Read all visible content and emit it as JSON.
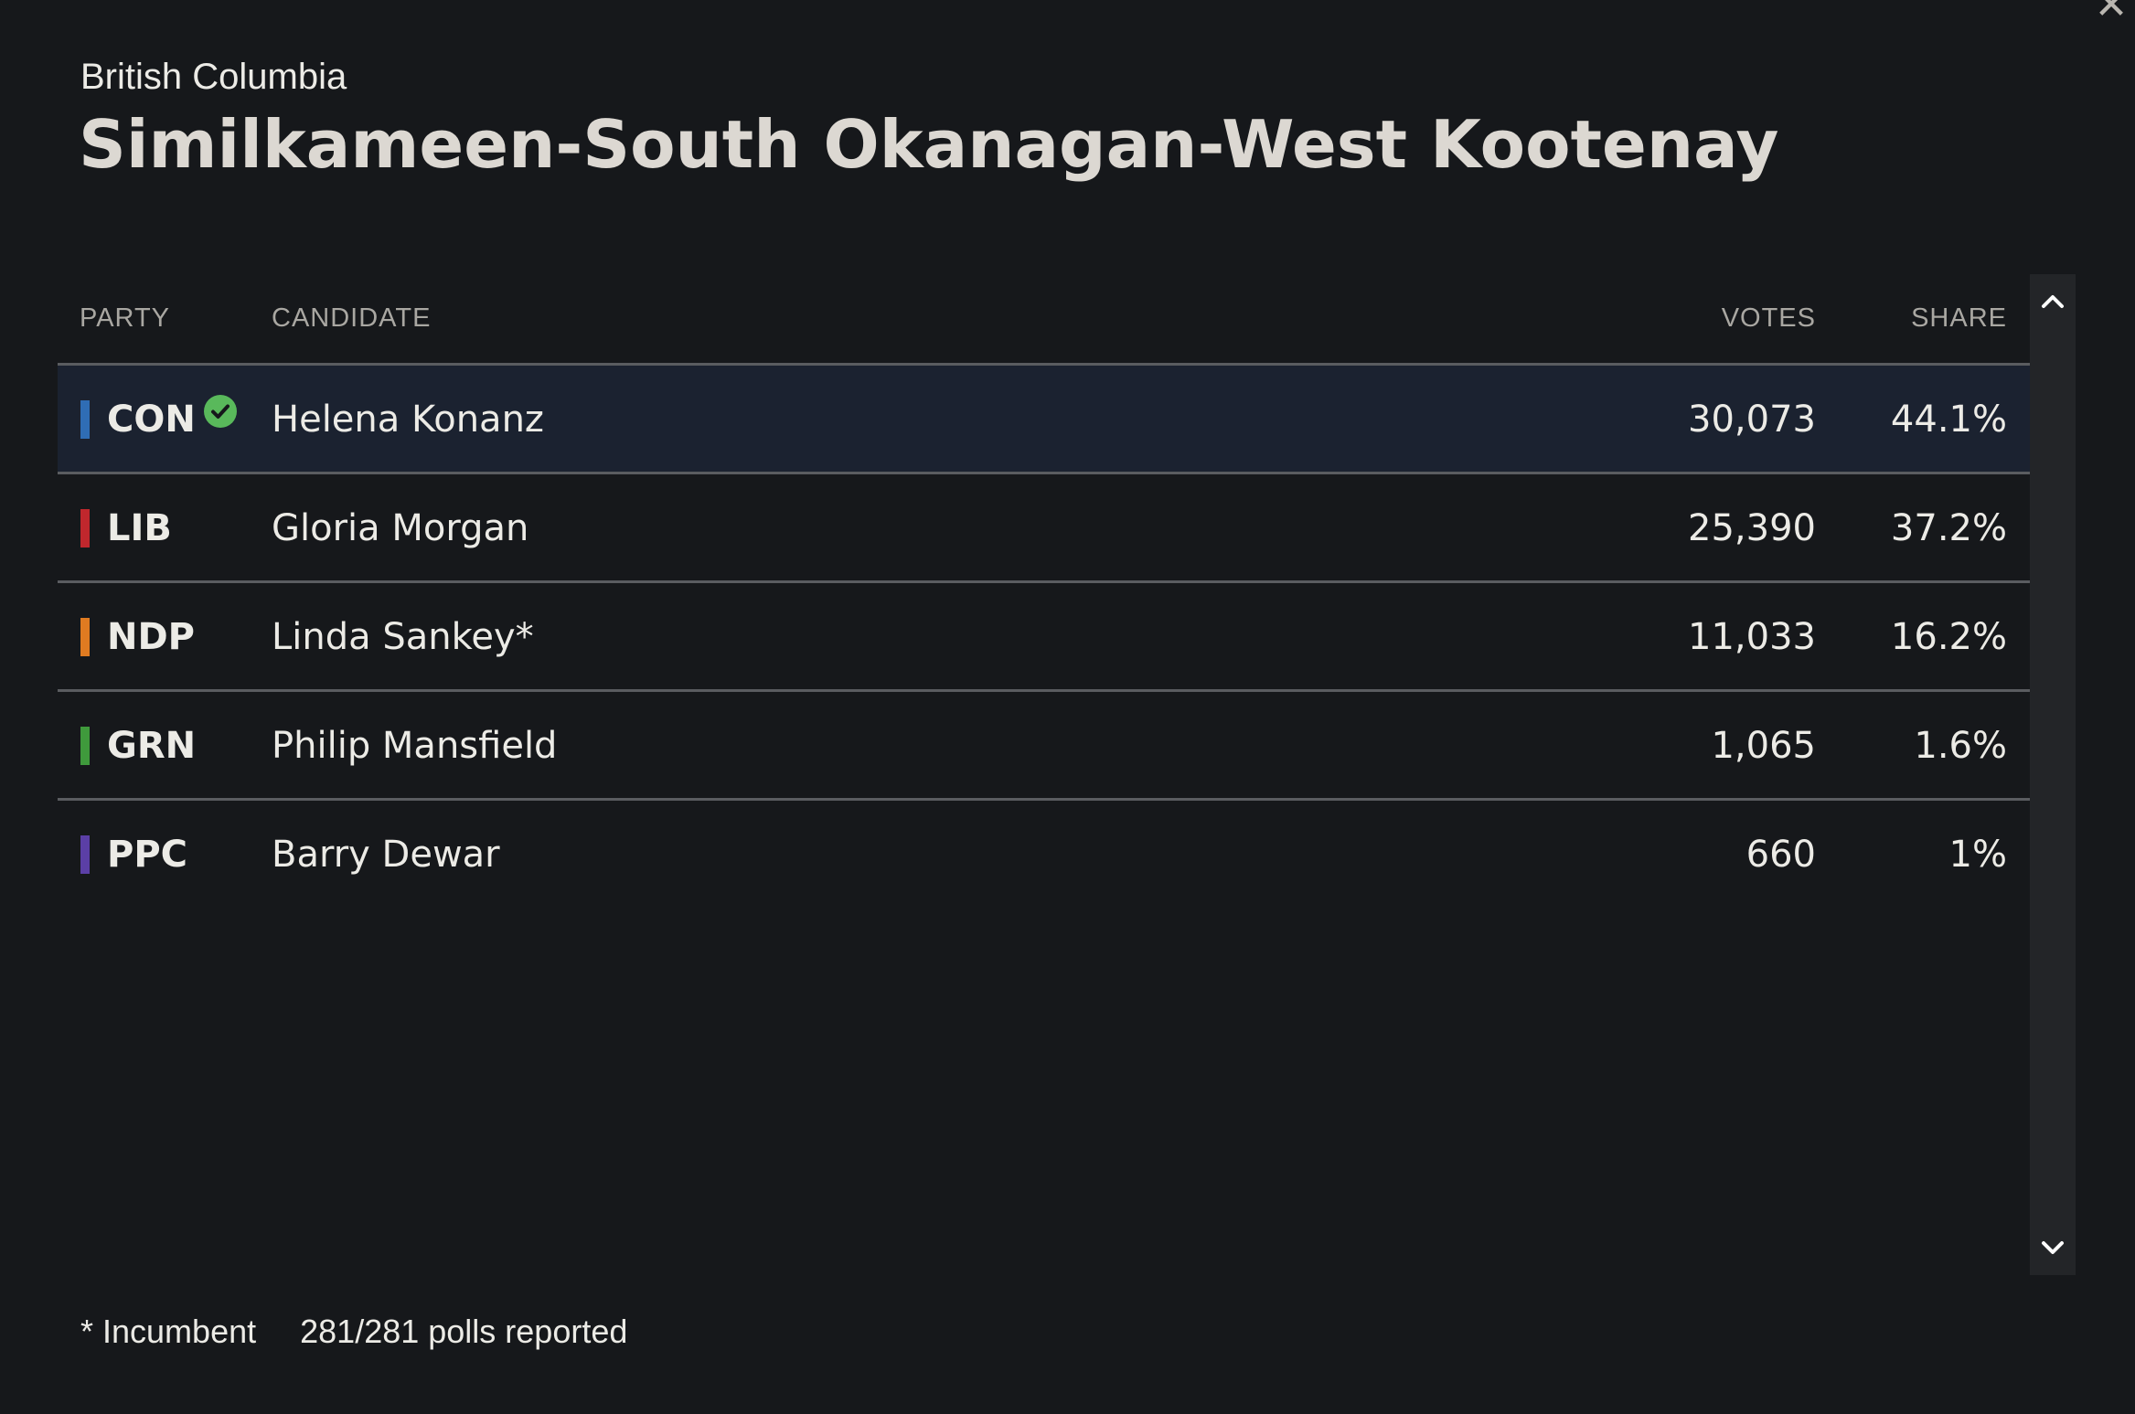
{
  "header": {
    "province": "British Columbia",
    "riding": "Similkameen-South Okanagan-West Kootenay"
  },
  "table": {
    "columns": {
      "party": "PARTY",
      "candidate": "CANDIDATE",
      "votes": "VOTES",
      "share": "SHARE"
    },
    "rows": [
      {
        "party": "CON",
        "candidate": "Helena Konanz",
        "votes": "30,073",
        "share": "44.1%",
        "color": "#2f6db5",
        "winner": true
      },
      {
        "party": "LIB",
        "candidate": "Gloria Morgan",
        "votes": "25,390",
        "share": "37.2%",
        "color": "#c0272d",
        "winner": false
      },
      {
        "party": "NDP",
        "candidate": "Linda Sankey*",
        "votes": "11,033",
        "share": "16.2%",
        "color": "#e07b21",
        "winner": false
      },
      {
        "party": "GRN",
        "candidate": "Philip Mansfield",
        "votes": "1,065",
        "share": "1.6%",
        "color": "#3f9a3c",
        "winner": false
      },
      {
        "party": "PPC",
        "candidate": "Barry Dewar",
        "votes": "660",
        "share": "1%",
        "color": "#5b3fa6",
        "winner": false
      }
    ]
  },
  "footer": {
    "incumbent_note": "* Incumbent",
    "polls": "281/281 polls reported"
  },
  "icons": {
    "close": "close-icon",
    "winner": "check-circle-icon",
    "scroll_up": "chevron-up-icon",
    "scroll_down": "chevron-down-icon"
  }
}
